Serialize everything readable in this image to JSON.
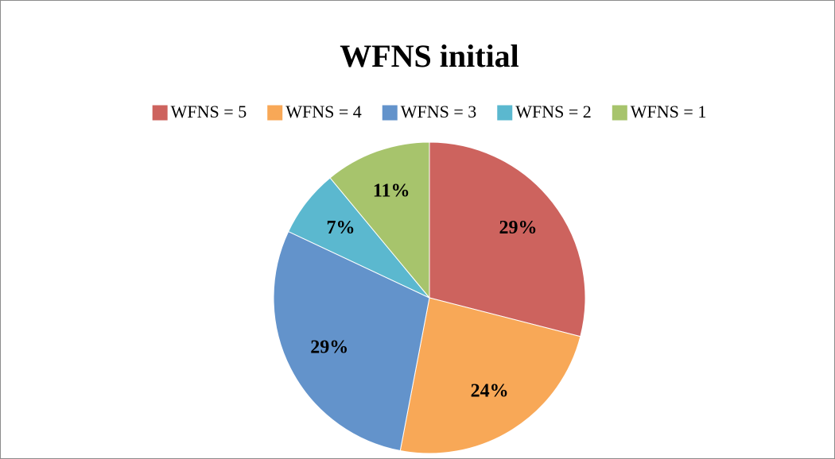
{
  "chart_data": {
    "type": "pie",
    "title": "WFNS initial",
    "categories": [
      "WFNS = 5",
      "WFNS = 4",
      "WFNS = 3",
      "WFNS = 2",
      "WFNS = 1"
    ],
    "values": [
      29,
      24,
      29,
      7,
      11
    ],
    "value_labels": [
      "29%",
      "24%",
      "29%",
      "7%",
      "11%"
    ],
    "colors": [
      "#cd635e",
      "#f8a857",
      "#6393cb",
      "#5bb8cf",
      "#a7c46c"
    ],
    "legend": "top"
  }
}
